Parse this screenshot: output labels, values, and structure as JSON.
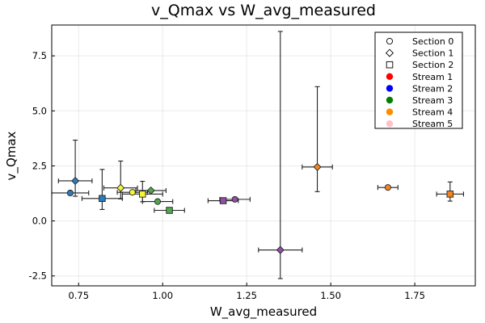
{
  "chart_data": {
    "type": "scatter",
    "title": "v_Qmax vs W_avg_measured",
    "xlabel": "W_avg_measured",
    "ylabel": "v_Qmax",
    "xlim": [
      0.67,
      1.93
    ],
    "ylim": [
      -2.95,
      8.9
    ],
    "xticks": [
      0.75,
      1.0,
      1.25,
      1.5,
      1.75
    ],
    "xtick_labels": [
      "0.75",
      "1.00",
      "1.25",
      "1.50",
      "1.75"
    ],
    "yticks": [
      -2.5,
      0.0,
      2.5,
      5.0,
      7.5
    ],
    "ytick_labels": [
      "-2.5",
      "0.0",
      "2.5",
      "5.0",
      "7.5"
    ],
    "grid": true,
    "legend_position": "top-right",
    "legend": [
      {
        "label": "Section 0",
        "kind": "shape",
        "shape": "circle"
      },
      {
        "label": "Section 1",
        "kind": "shape",
        "shape": "diamond"
      },
      {
        "label": "Section 2",
        "kind": "shape",
        "shape": "square"
      },
      {
        "label": "Stream 1",
        "kind": "color",
        "color": "#ff0000"
      },
      {
        "label": "Stream 2",
        "kind": "color",
        "color": "#0000ff"
      },
      {
        "label": "Stream 3",
        "kind": "color",
        "color": "#008000"
      },
      {
        "label": "Stream 4",
        "kind": "color",
        "color": "#ff8c00"
      },
      {
        "label": "Stream 5",
        "kind": "color",
        "color": "#ffc0cb"
      }
    ],
    "points": [
      {
        "x": 0.725,
        "y": 1.27,
        "xerr": 0.055,
        "yerr_low": 0.0,
        "yerr_high": 0.0,
        "shape": "circle",
        "color": "#2e7bb8"
      },
      {
        "x": 0.74,
        "y": 1.82,
        "xerr": 0.05,
        "yerr_low": 0.7,
        "yerr_high": 1.85,
        "shape": "diamond",
        "color": "#2e7bb8"
      },
      {
        "x": 0.82,
        "y": 1.02,
        "xerr": 0.06,
        "yerr_low": 0.5,
        "yerr_high": 1.32,
        "shape": "square",
        "color": "#2e7bb8"
      },
      {
        "x": 0.875,
        "y": 1.5,
        "xerr": 0.05,
        "yerr_low": 0.5,
        "yerr_high": 1.22,
        "shape": "diamond",
        "color": "#f5f53a"
      },
      {
        "x": 0.91,
        "y": 1.3,
        "xerr": 0.045,
        "yerr_low": 0.0,
        "yerr_high": 0.0,
        "shape": "circle",
        "color": "#f5f53a"
      },
      {
        "x": 0.94,
        "y": 1.22,
        "xerr": 0.06,
        "yerr_low": 0.35,
        "yerr_high": 0.58,
        "shape": "square",
        "color": "#f5f53a"
      },
      {
        "x": 0.965,
        "y": 1.38,
        "xerr": 0.045,
        "yerr_low": 0.0,
        "yerr_high": 0.0,
        "shape": "diamond",
        "color": "#4fa84a"
      },
      {
        "x": 0.985,
        "y": 0.88,
        "xerr": 0.045,
        "yerr_low": 0.0,
        "yerr_high": 0.0,
        "shape": "circle",
        "color": "#4fa84a"
      },
      {
        "x": 1.02,
        "y": 0.48,
        "xerr": 0.045,
        "yerr_low": 0.0,
        "yerr_high": 0.0,
        "shape": "square",
        "color": "#4fa84a"
      },
      {
        "x": 1.18,
        "y": 0.92,
        "xerr": 0.045,
        "yerr_low": 0.0,
        "yerr_high": 0.12,
        "shape": "square",
        "color": "#8f4fa3"
      },
      {
        "x": 1.215,
        "y": 0.98,
        "xerr": 0.045,
        "yerr_low": 0.0,
        "yerr_high": 0.0,
        "shape": "circle",
        "color": "#8f4fa3"
      },
      {
        "x": 1.35,
        "y": -1.32,
        "xerr": 0.065,
        "yerr_low": 1.3,
        "yerr_high": 9.93,
        "shape": "diamond",
        "color": "#8f4fa3"
      },
      {
        "x": 1.46,
        "y": 2.45,
        "xerr": 0.045,
        "yerr_low": 1.12,
        "yerr_high": 3.65,
        "shape": "diamond",
        "color": "#f5841f"
      },
      {
        "x": 1.67,
        "y": 1.52,
        "xerr": 0.03,
        "yerr_low": 0.0,
        "yerr_high": 0.0,
        "shape": "circle",
        "color": "#f5841f"
      },
      {
        "x": 1.855,
        "y": 1.22,
        "xerr": 0.04,
        "yerr_low": 0.32,
        "yerr_high": 0.55,
        "shape": "square",
        "color": "#f5841f"
      }
    ]
  }
}
